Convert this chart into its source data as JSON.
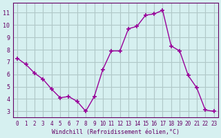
{
  "x": [
    0,
    1,
    2,
    3,
    4,
    5,
    6,
    7,
    8,
    9,
    10,
    11,
    12,
    13,
    14,
    15,
    16,
    17,
    18,
    19,
    20,
    21,
    22,
    23
  ],
  "y": [
    7.3,
    6.8,
    6.1,
    5.6,
    4.8,
    4.1,
    4.2,
    3.8,
    3.0,
    4.2,
    6.4,
    7.9,
    7.9,
    9.7,
    9.9,
    10.8,
    10.9,
    11.2,
    8.3,
    7.9,
    5.9,
    4.9,
    3.1,
    3.0
  ],
  "line_color": "#990099",
  "marker_color": "#990099",
  "bg_color": "#d6f0f0",
  "grid_color": "#b0c8c8",
  "axis_label_color": "#660066",
  "xlabel": "Windchill (Refroidissement éolien,°C)",
  "xtick_labels": [
    "0",
    "1",
    "2",
    "3",
    "4",
    "5",
    "6",
    "7",
    "8",
    "9",
    "10",
    "11",
    "12",
    "13",
    "14",
    "15",
    "16",
    "17",
    "18",
    "19",
    "20",
    "21",
    "22",
    "23"
  ],
  "ylim": [
    2.5,
    11.8
  ],
  "xlim": [
    -0.5,
    23.5
  ],
  "yticks": [
    3,
    4,
    5,
    6,
    7,
    8,
    9,
    10,
    11
  ],
  "figsize": [
    3.2,
    2.0
  ],
  "dpi": 100
}
